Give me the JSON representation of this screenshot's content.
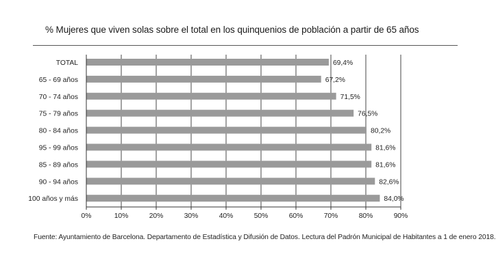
{
  "title": "% Mujeres que viven solas sobre el total en los quinquenios de población a partir de 65 años",
  "source": "Fuente: Ayuntamiento de Barcelona. Departamento de Estadística y Difusión de Datos. Lectura del Padrón Municipal de Habitantes a 1 de enero 2018.",
  "colors": {
    "bar": "#9a9a9a",
    "axis": "#333333",
    "grid": "#444444",
    "text": "#222222"
  },
  "chart_data": {
    "type": "bar",
    "orientation": "horizontal",
    "title": "% Mujeres que viven solas sobre el total en los quinquenios de población a partir de 65 años",
    "categories": [
      "TOTAL",
      "65 - 69 años",
      "70 - 74 años",
      "75 - 79 años",
      "80 - 84 años",
      "95 - 99 años",
      "85 - 89 años",
      "90 - 94 años",
      "100 años y más"
    ],
    "values": [
      69.4,
      67.2,
      71.5,
      76.5,
      80.2,
      81.6,
      81.6,
      82.6,
      84.0
    ],
    "value_labels": [
      "69,4%",
      "67,2%",
      "71,5%",
      "76,5%",
      "80,2%",
      "81,6%",
      "81,6%",
      "82,6%",
      "84,0%"
    ],
    "xlim": [
      0,
      90
    ],
    "xticks": [
      0,
      10,
      20,
      30,
      40,
      50,
      60,
      70,
      80,
      90
    ],
    "xtick_labels": [
      "0%",
      "10%",
      "20%",
      "30%",
      "40%",
      "50%",
      "60%",
      "70%",
      "80%",
      "90%"
    ],
    "grid": "vertical",
    "xlabel": "",
    "ylabel": ""
  }
}
